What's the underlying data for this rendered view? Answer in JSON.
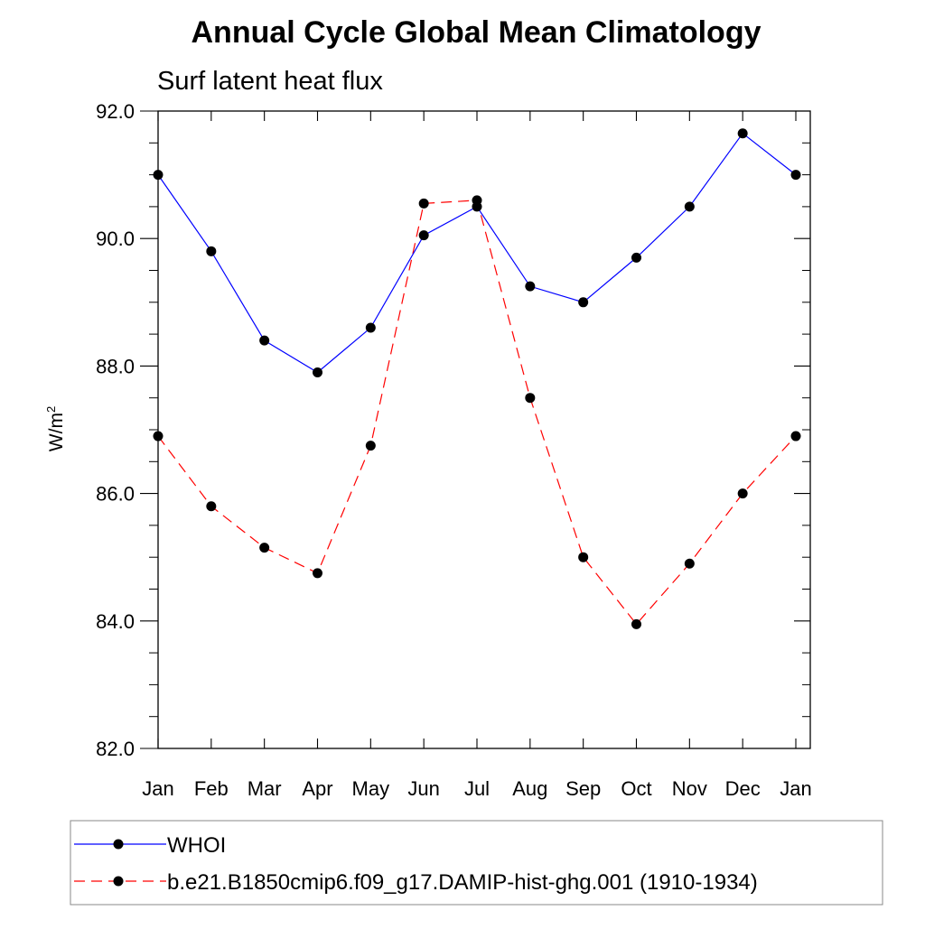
{
  "chart_data": {
    "type": "line",
    "title": "Annual Cycle Global Mean Climatology",
    "subtitle": "Surf latent heat flux",
    "ylabel": "W/m",
    "ylabel_sup": "2",
    "xlabel": "",
    "categories": [
      "Jan",
      "Feb",
      "Mar",
      "Apr",
      "May",
      "Jun",
      "Jul",
      "Aug",
      "Sep",
      "Oct",
      "Nov",
      "Dec",
      "Jan"
    ],
    "ylim": [
      82.0,
      92.0
    ],
    "yticks": [
      82.0,
      84.0,
      86.0,
      88.0,
      90.0,
      92.0
    ],
    "ytick_labels": [
      "82.0",
      "84.0",
      "86.0",
      "88.0",
      "90.0",
      "92.0"
    ],
    "grid": false,
    "legend_position": "bottom",
    "series": [
      {
        "name": "WHOI",
        "color": "#0000ff",
        "dash": "solid",
        "marker": "filled-circle",
        "values": [
          91.0,
          89.8,
          88.4,
          87.9,
          88.6,
          90.05,
          90.5,
          89.25,
          89.0,
          89.7,
          90.5,
          91.65,
          91.0
        ]
      },
      {
        "name": "b.e21.B1850cmip6.f09_g17.DAMIP-hist-ghg.001 (1910-1934)",
        "color": "#ff0000",
        "dash": "dashed",
        "marker": "filled-circle",
        "values": [
          86.9,
          85.8,
          85.15,
          84.75,
          86.75,
          90.55,
          90.6,
          87.5,
          85.0,
          83.95,
          84.9,
          86.0,
          86.9
        ]
      }
    ]
  }
}
